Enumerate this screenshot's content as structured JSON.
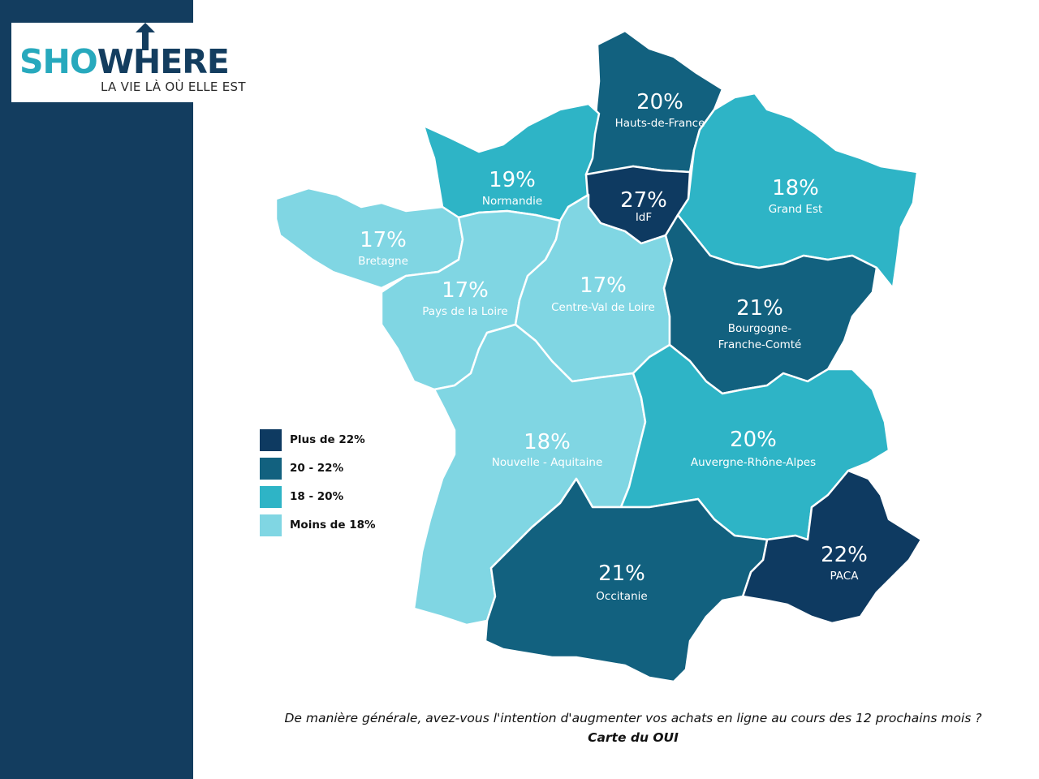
{
  "logo": {
    "brand_light": "SHO",
    "brand_dark": "WHERE",
    "tagline": "LA VIE LÀ OÙ ELLE EST"
  },
  "colors": {
    "plus_22": "#0e3a61",
    "from_20_to_22": "#12617f",
    "from_18_to_20": "#2eb4c6",
    "less_18": "#80d6e3",
    "sidebar": "#133d5f"
  },
  "legend": [
    {
      "label": "Plus de 22%",
      "color": "#0e3a61"
    },
    {
      "label": "20 - 22%",
      "color": "#12617f"
    },
    {
      "label": "18 - 20%",
      "color": "#2eb4c6"
    },
    {
      "label": "Moins de 18%",
      "color": "#80d6e3"
    }
  ],
  "regions": [
    {
      "name": "Hauts-de-France",
      "value": "20%"
    },
    {
      "name": "Normandie",
      "value": "19%"
    },
    {
      "name": "IdF",
      "value": "27%"
    },
    {
      "name": "Grand Est",
      "value": "18%"
    },
    {
      "name": "Bretagne",
      "value": "17%"
    },
    {
      "name": "Pays de la Loire",
      "value": "17%"
    },
    {
      "name": "Centre-Val de Loire",
      "value": "17%"
    },
    {
      "name": "Bourgogne-",
      "name2": "Franche-Comté",
      "value": "21%"
    },
    {
      "name": "Nouvelle - Aquitaine",
      "value": "18%"
    },
    {
      "name": "Auvergne-Rhône-Alpes",
      "value": "20%"
    },
    {
      "name": "PACA",
      "value": "22%"
    },
    {
      "name": "Occitanie",
      "value": "21%"
    }
  ],
  "question": "De manière générale, avez-vous l'intention d'augmenter vos achats en ligne au cours des 12 prochains mois ?",
  "subtitle": "Carte du OUI"
}
